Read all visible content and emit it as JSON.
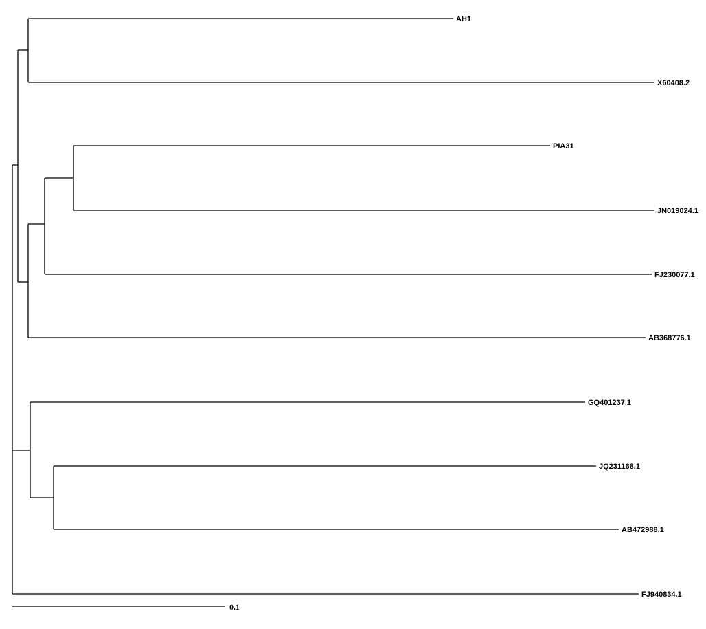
{
  "tree": {
    "taxa": [
      "AH1",
      "X60408.2",
      "PIA31",
      "JN019024.1",
      "FJ230077.1",
      "AB368776.1",
      "GQ401237.1",
      "JQ231168.1",
      "AB472988.1",
      "FJ940834.1"
    ],
    "scale_bar_label": "0.1"
  }
}
